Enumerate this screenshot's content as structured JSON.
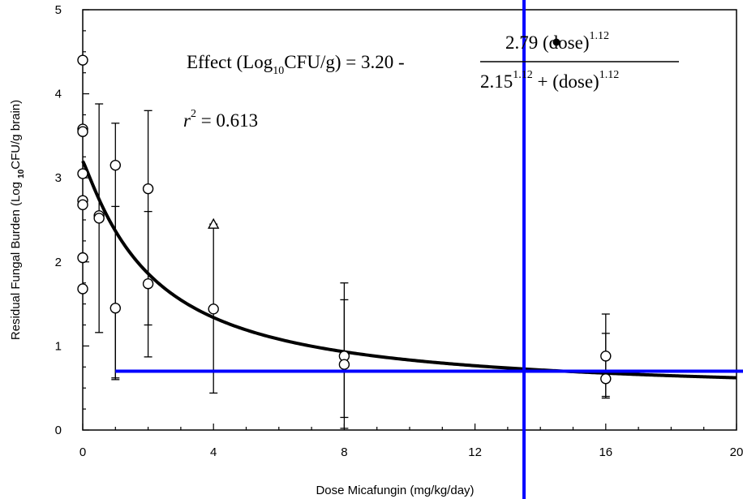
{
  "chart_data": {
    "type": "scatter",
    "xlabel": "Dose Micafungin (mg/kg/day)",
    "ylabel_main": "Residual Fungal Burden (Log ",
    "ylabel_sub": "10",
    "ylabel_rest": "CFU/g brain)",
    "xlim": [
      0,
      20
    ],
    "ylim": [
      0,
      5
    ],
    "x_ticks": [
      "0",
      "4",
      "8",
      "12",
      "16",
      "20"
    ],
    "y_ticks": [
      "0",
      "1",
      "2",
      "3",
      "4",
      "5"
    ],
    "grid": false,
    "equation": {
      "lhs_a": "Effect  (Log",
      "lhs_sub": "10",
      "lhs_b": "CFU/g) = 3.20 - ",
      "num_a": "2.79",
      "num_b": " (dose)",
      "num_exp": "1.12",
      "den_a": "2.15",
      "den_exp": "1.12",
      "den_b": " + (dose)",
      "den_exp2": "1.12"
    },
    "r2": {
      "symbol": "r",
      "exp": "2",
      "text": " = 0.613"
    },
    "fit_params": {
      "e0": 3.2,
      "emax": 2.79,
      "ed50": 2.15,
      "hill": 1.12
    },
    "points": [
      {
        "x": 0,
        "y": 4.4,
        "marker": "circle"
      },
      {
        "x": 0,
        "y": 3.58,
        "marker": "circle"
      },
      {
        "x": 0,
        "y": 3.55,
        "marker": "circle"
      },
      {
        "x": 0,
        "y": 3.05,
        "marker": "circle"
      },
      {
        "x": 0,
        "y": 2.73,
        "marker": "circle"
      },
      {
        "x": 0,
        "y": 2.68,
        "marker": "circle"
      },
      {
        "x": 0,
        "y": 2.05,
        "marker": "circle"
      },
      {
        "x": 0,
        "y": 1.68,
        "marker": "circle"
      },
      {
        "x": 0.5,
        "y": 2.55,
        "marker": "circle"
      },
      {
        "x": 0.5,
        "y": 2.52,
        "marker": "circle"
      },
      {
        "x": 1,
        "y": 3.15,
        "marker": "circle"
      },
      {
        "x": 1,
        "y": 1.45,
        "marker": "circle"
      },
      {
        "x": 2,
        "y": 2.87,
        "marker": "circle"
      },
      {
        "x": 2,
        "y": 1.74,
        "marker": "circle"
      },
      {
        "x": 4,
        "y": 2.45,
        "marker": "triangle"
      },
      {
        "x": 4,
        "y": 1.44,
        "marker": "circle"
      },
      {
        "x": 8,
        "y": 0.88,
        "marker": "circle"
      },
      {
        "x": 8,
        "y": 0.78,
        "marker": "circle"
      },
      {
        "x": 16,
        "y": 0.88,
        "marker": "circle"
      },
      {
        "x": 16,
        "y": 0.61,
        "marker": "circle"
      }
    ],
    "error_bars": [
      {
        "x": 0.5,
        "low": 1.16,
        "high": 3.88
      },
      {
        "x": 1,
        "low": 0.62,
        "high": 3.65
      },
      {
        "x": 1,
        "low": 0.6,
        "high": 2.66
      },
      {
        "x": 2,
        "low": 0.87,
        "high": 3.8
      },
      {
        "x": 2,
        "low": 1.25,
        "high": 2.6
      },
      {
        "x": 4,
        "low": 0.44,
        "high": 2.45
      },
      {
        "x": 8,
        "low": 0.02,
        "high": 1.75
      },
      {
        "x": 8,
        "low": 0.15,
        "high": 1.55
      },
      {
        "x": 16,
        "low": 0.38,
        "high": 1.38
      },
      {
        "x": 16,
        "low": 0.4,
        "high": 1.15
      }
    ],
    "reference_lines": {
      "color": "#0000ff",
      "horizontal_y": 0.7,
      "horizontal_from_x": 1,
      "vertical_x": 13.5
    }
  }
}
